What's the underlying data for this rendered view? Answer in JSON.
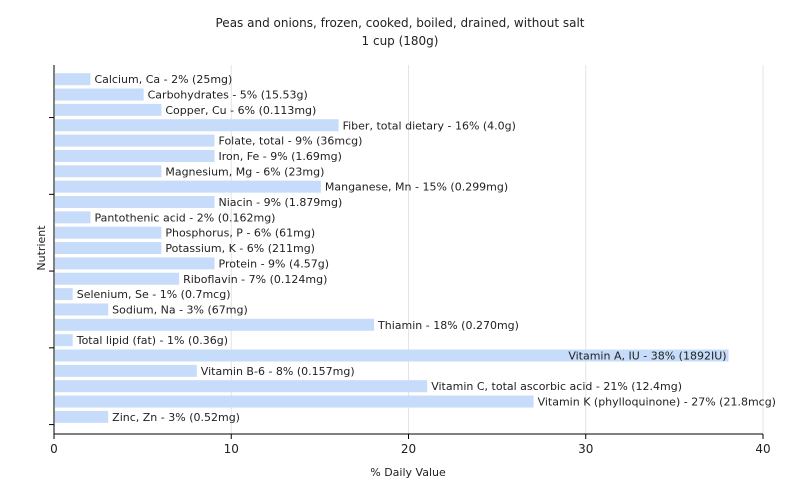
{
  "chart_data": {
    "type": "bar",
    "orientation": "horizontal",
    "title": "Peas and onions, frozen, cooked, boiled, drained, without salt",
    "subtitle": "1 cup (180g)",
    "xlabel": "% Daily Value",
    "ylabel": "Nutrient",
    "xlim": [
      0,
      40
    ],
    "xticks": [
      0,
      10,
      20,
      30,
      40
    ],
    "grid": true,
    "bar_color": "#c6dcfa",
    "categories": [
      "Calcium, Ca",
      "Carbohydrates",
      "Copper, Cu",
      "Fiber, total dietary",
      "Folate, total",
      "Iron, Fe",
      "Magnesium, Mg",
      "Manganese, Mn",
      "Niacin",
      "Pantothenic acid",
      "Phosphorus, P",
      "Potassium, K",
      "Protein",
      "Riboflavin",
      "Selenium, Se",
      "Sodium, Na",
      "Thiamin",
      "Total lipid (fat)",
      "Vitamin A, IU",
      "Vitamin B-6",
      "Vitamin C, total ascorbic acid",
      "Vitamin K (phylloquinone)",
      "Zinc, Zn"
    ],
    "values": [
      2,
      5,
      6,
      16,
      9,
      9,
      6,
      15,
      9,
      2,
      6,
      6,
      9,
      7,
      1,
      3,
      18,
      1,
      38,
      8,
      21,
      27,
      3
    ],
    "labels": [
      "Calcium, Ca - 2% (25mg)",
      "Carbohydrates - 5% (15.53g)",
      "Copper, Cu - 6% (0.113mg)",
      "Fiber, total dietary - 16% (4.0g)",
      "Folate, total - 9% (36mcg)",
      "Iron, Fe - 9% (1.69mg)",
      "Magnesium, Mg - 6% (23mg)",
      "Manganese, Mn - 15% (0.299mg)",
      "Niacin - 9% (1.879mg)",
      "Pantothenic acid - 2% (0.162mg)",
      "Phosphorus, P - 6% (61mg)",
      "Potassium, K - 6% (211mg)",
      "Protein - 9% (4.57g)",
      "Riboflavin - 7% (0.124mg)",
      "Selenium, Se - 1% (0.7mcg)",
      "Sodium, Na - 3% (67mg)",
      "Thiamin - 18% (0.270mg)",
      "Total lipid (fat) - 1% (0.36g)",
      "Vitamin A, IU - 38% (1892IU)",
      "Vitamin B-6 - 8% (0.157mg)",
      "Vitamin C, total ascorbic acid - 21% (12.4mg)",
      "Vitamin K (phylloquinone) - 27% (21.8mcg)",
      "Zinc, Zn - 3% (0.52mg)"
    ]
  }
}
